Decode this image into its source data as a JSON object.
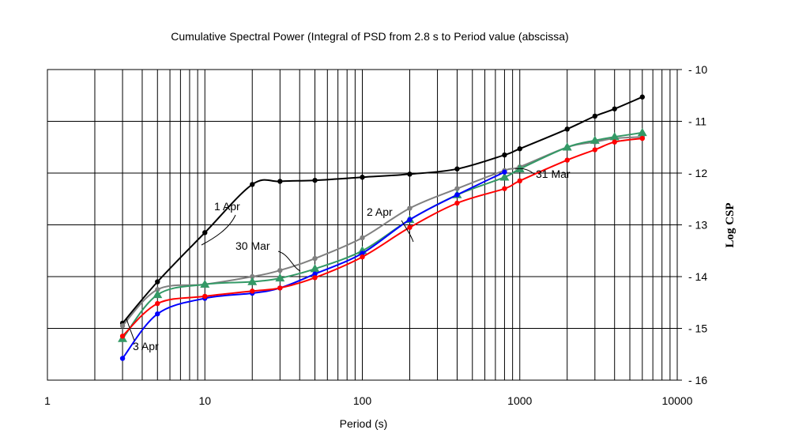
{
  "chart_data": {
    "type": "line",
    "title": "Cumulative Spectral Power (Integral of PSD from 2.8 s to Period value (abscissa)",
    "xlabel": "Period  (s)",
    "ylabel": "Log CSP",
    "xscale": "log",
    "xlim": [
      1,
      10000
    ],
    "ylim": [
      -16,
      -10
    ],
    "x_ticks": [
      1,
      10,
      100,
      1000,
      10000
    ],
    "x_tick_labels": [
      "1",
      "10",
      "100",
      "1000",
      "10000"
    ],
    "y_ticks": [
      -10,
      -11,
      -12,
      -13,
      -14,
      -15,
      -16
    ],
    "y_tick_labels": [
      "- 10",
      "- 11",
      "- 12",
      "- 13",
      "- 14",
      "- 15",
      "- 16"
    ],
    "y_axis_side": "right",
    "grid": true,
    "series": [
      {
        "name": "1 Apr",
        "color": "#000000",
        "marker": "circle",
        "x": [
          3,
          5,
          10,
          20,
          30,
          50,
          100,
          200,
          400,
          800,
          1000,
          2000,
          3000,
          4000,
          6000
        ],
        "y": [
          -14.9,
          -14.1,
          -13.15,
          -12.22,
          -12.16,
          -12.14,
          -12.08,
          -12.02,
          -11.92,
          -11.65,
          -11.53,
          -11.15,
          -10.9,
          -10.76,
          -10.53
        ]
      },
      {
        "name": "2 Apr",
        "color": "#808080",
        "marker": "circle",
        "x": [
          3,
          5,
          10,
          20,
          30,
          50,
          100,
          200,
          400,
          800,
          1000,
          2000,
          3000,
          4000,
          6000
        ],
        "y": [
          -14.95,
          -14.25,
          -14.15,
          -14.0,
          -13.88,
          -13.65,
          -13.25,
          -12.68,
          -12.3,
          -11.95,
          -11.88,
          -11.5,
          -11.4,
          -11.33,
          -11.3
        ]
      },
      {
        "name": "30 Mar",
        "color": "#339966",
        "marker": "triangle",
        "x": [
          3,
          5,
          10,
          20,
          30,
          50,
          100,
          200,
          400,
          800,
          1000,
          2000,
          3000,
          4000,
          6000
        ],
        "y": [
          -15.2,
          -14.35,
          -14.15,
          -14.1,
          -14.03,
          -13.85,
          -13.5,
          -12.9,
          -12.42,
          -12.08,
          -11.92,
          -11.5,
          -11.37,
          -11.3,
          -11.22
        ]
      },
      {
        "name": "3 Apr",
        "color": "#0000ff",
        "marker": "circle",
        "x": [
          3,
          5,
          10,
          20,
          30,
          50,
          100,
          200,
          400,
          800
        ],
        "y": [
          -15.58,
          -14.72,
          -14.42,
          -14.32,
          -14.22,
          -13.95,
          -13.55,
          -12.9,
          -12.42,
          -11.98
        ]
      },
      {
        "name": "31 Mar",
        "color": "#ff0000",
        "marker": "circle",
        "x": [
          3,
          5,
          10,
          20,
          30,
          50,
          100,
          200,
          400,
          800,
          1000,
          2000,
          3000,
          4000,
          6000
        ],
        "y": [
          -15.15,
          -14.52,
          -14.38,
          -14.28,
          -14.22,
          -14.02,
          -13.62,
          -13.05,
          -12.58,
          -12.3,
          -12.15,
          -11.75,
          -11.55,
          -11.4,
          -11.33
        ]
      }
    ],
    "annotations": [
      {
        "text": "1 Apr"
      },
      {
        "text": "2 Apr"
      },
      {
        "text": "30 Mar"
      },
      {
        "text": "31 Mar"
      },
      {
        "text": "3 Apr"
      }
    ]
  }
}
